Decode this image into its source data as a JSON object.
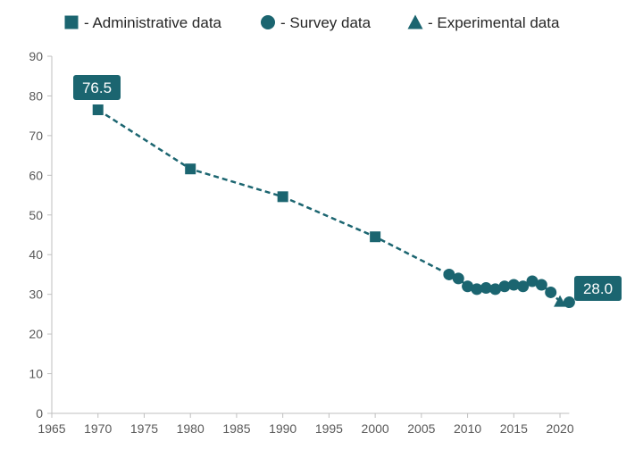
{
  "chart_data": {
    "type": "line",
    "title": "",
    "xlabel": "",
    "ylabel": "",
    "xlim": [
      1965,
      2021
    ],
    "ylim": [
      0,
      90
    ],
    "xticks": [
      1965,
      1970,
      1975,
      1980,
      1985,
      1990,
      1995,
      2000,
      2005,
      2010,
      2015,
      2020
    ],
    "yticks": [
      0,
      10,
      20,
      30,
      40,
      50,
      60,
      70,
      80,
      90
    ],
    "grid": false,
    "legend_placement": "top",
    "line_style": "dashed",
    "color": "#1b6570",
    "legend": [
      {
        "marker": "square",
        "label": "- Administrative data"
      },
      {
        "marker": "circle",
        "label": "- Survey data"
      },
      {
        "marker": "triangle",
        "label": "- Experimental data"
      }
    ],
    "points": [
      {
        "x": 1970,
        "y": 76.5,
        "marker": "square"
      },
      {
        "x": 1980,
        "y": 61.6,
        "marker": "square"
      },
      {
        "x": 1990,
        "y": 54.6,
        "marker": "square"
      },
      {
        "x": 2000,
        "y": 44.5,
        "marker": "square"
      },
      {
        "x": 2008,
        "y": 35.0,
        "marker": "circle"
      },
      {
        "x": 2009,
        "y": 34.0,
        "marker": "circle"
      },
      {
        "x": 2010,
        "y": 32.0,
        "marker": "circle"
      },
      {
        "x": 2011,
        "y": 31.3,
        "marker": "circle"
      },
      {
        "x": 2012,
        "y": 31.6,
        "marker": "circle"
      },
      {
        "x": 2013,
        "y": 31.3,
        "marker": "circle"
      },
      {
        "x": 2014,
        "y": 32.0,
        "marker": "circle"
      },
      {
        "x": 2015,
        "y": 32.4,
        "marker": "circle"
      },
      {
        "x": 2016,
        "y": 32.0,
        "marker": "circle"
      },
      {
        "x": 2017,
        "y": 33.3,
        "marker": "circle"
      },
      {
        "x": 2018,
        "y": 32.4,
        "marker": "circle"
      },
      {
        "x": 2019,
        "y": 30.5,
        "marker": "circle"
      },
      {
        "x": 2020,
        "y": 28.2,
        "marker": "triangle"
      },
      {
        "x": 2021,
        "y": 28.0,
        "marker": "circle"
      }
    ],
    "annotations": [
      {
        "x": 1970,
        "y": 76.5,
        "text": "76.5"
      },
      {
        "x": 2021,
        "y": 28.0,
        "text": "28.0"
      }
    ]
  }
}
